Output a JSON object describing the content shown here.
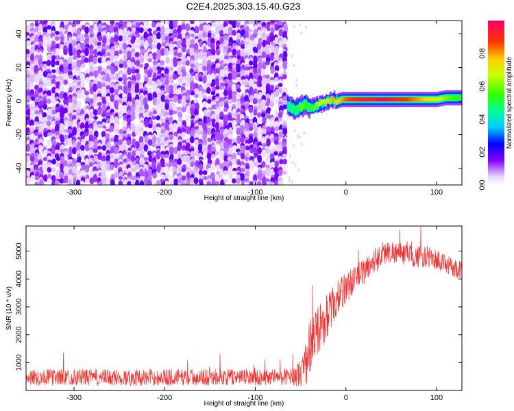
{
  "title": "C2E4.2025.303.15.40.G23",
  "chart_data": [
    {
      "type": "heatmap",
      "xlabel": "Height of straight line (km)",
      "ylabel": "Frequency (Hz)",
      "xlim": [
        -353,
        128
      ],
      "ylim": [
        -50,
        48
      ],
      "xticks": [
        -300,
        -200,
        -100,
        0,
        100
      ],
      "yticks": [
        -40,
        -20,
        0,
        20,
        40
      ],
      "noise_region_x": [
        -353,
        -65
      ],
      "signal_track": {
        "x": [
          -65,
          -60,
          -55,
          -50,
          -45,
          -40,
          -35,
          -30,
          -25,
          -20,
          -15,
          -10,
          -5,
          0,
          10,
          20,
          30,
          40,
          50,
          60,
          70,
          80,
          90,
          100,
          110,
          120,
          128
        ],
        "freq": [
          -2,
          -4,
          -5,
          -3,
          -2,
          -4,
          -3,
          -2,
          -1,
          0,
          1,
          0,
          1,
          1,
          1,
          1,
          1,
          1,
          1,
          1,
          1,
          1,
          1,
          1,
          2,
          2,
          2
        ],
        "amplitude": [
          0.4,
          0.5,
          0.45,
          0.6,
          0.55,
          0.5,
          0.6,
          0.65,
          0.7,
          0.75,
          0.8,
          0.75,
          0.8,
          0.85,
          0.9,
          0.95,
          0.95,
          1.0,
          0.95,
          0.9,
          0.85,
          0.8,
          0.75,
          0.7,
          0.6,
          0.55,
          0.5
        ]
      },
      "colorbar": {
        "label": "Normalized spectral amplitude",
        "range": [
          0,
          1
        ],
        "ticks": [
          "0.0",
          "0.2",
          "0.4",
          "0.6",
          "0.8"
        ]
      }
    },
    {
      "type": "line",
      "xlabel": "Height of straight line (km)",
      "ylabel": "SNR (10 * v/v)",
      "xlim": [
        -353,
        128
      ],
      "ylim": [
        0,
        5900
      ],
      "xticks": [
        -300,
        -200,
        -100,
        0,
        100
      ],
      "yticks": [
        1000,
        2000,
        3000,
        4000,
        5000
      ],
      "color": "#ee3333",
      "envelope": {
        "x": [
          -353,
          -300,
          -250,
          -200,
          -150,
          -100,
          -60,
          -50,
          -45,
          -40,
          -35,
          -30,
          -25,
          -20,
          -15,
          -10,
          -5,
          0,
          10,
          20,
          30,
          40,
          50,
          60,
          70,
          80,
          90,
          100,
          110,
          120,
          128
        ],
        "y": [
          470,
          480,
          460,
          470,
          480,
          480,
          500,
          600,
          900,
          1500,
          1900,
          2200,
          2500,
          2700,
          3000,
          3300,
          3500,
          3700,
          4000,
          4300,
          4600,
          4900,
          5000,
          4900,
          4850,
          4800,
          4800,
          4700,
          4500,
          4400,
          4300
        ]
      },
      "noise_amplitude": [
        300,
        300,
        300,
        300,
        300,
        300,
        300,
        500,
        800,
        1100,
        1000,
        900,
        900,
        800,
        700,
        650,
        600,
        600,
        500,
        500,
        500,
        450,
        400,
        400,
        400,
        400,
        400,
        400,
        350,
        350,
        350
      ]
    }
  ]
}
